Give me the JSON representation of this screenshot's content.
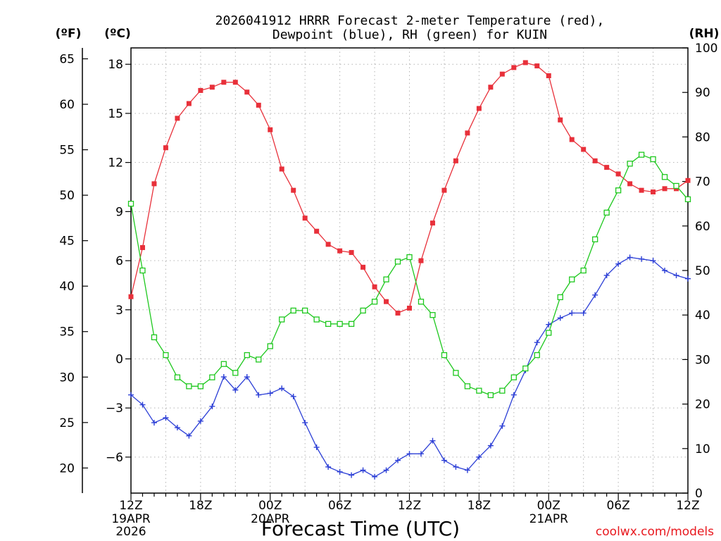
{
  "chart_data": {
    "type": "line",
    "title_lines": [
      "2026041912 HRRR Forecast 2-meter Temperature (red),",
      "Dewpoint (blue), RH (green) for KUIN"
    ],
    "xlabel": "Forecast Time (UTC)",
    "credit": "coolwx.com/models",
    "units": {
      "fahrenheit": "(ºF)",
      "celsius": "(ºC)",
      "rh": "(RH)"
    },
    "x_range_hours": [
      0,
      48
    ],
    "x_ticks": [
      {
        "hour": 0,
        "label": "12Z",
        "sub": [
          "19APR",
          "2026"
        ]
      },
      {
        "hour": 6,
        "label": "18Z",
        "sub": []
      },
      {
        "hour": 12,
        "label": "00Z",
        "sub": [
          "20APR"
        ]
      },
      {
        "hour": 18,
        "label": "06Z",
        "sub": []
      },
      {
        "hour": 24,
        "label": "12Z",
        "sub": []
      },
      {
        "hour": 30,
        "label": "18Z",
        "sub": []
      },
      {
        "hour": 36,
        "label": "00Z",
        "sub": [
          "21APR"
        ]
      },
      {
        "hour": 42,
        "label": "06Z",
        "sub": []
      },
      {
        "hour": 48,
        "label": "12Z",
        "sub": []
      }
    ],
    "celsius_axis": {
      "range": [
        -8.2,
        19.0
      ],
      "ticks": [
        18,
        15,
        12,
        9,
        6,
        3,
        0,
        -3,
        -6
      ]
    },
    "fahrenheit_axis": {
      "ticks": [
        65,
        60,
        55,
        50,
        45,
        40,
        35,
        30,
        25,
        20
      ]
    },
    "rh_axis": {
      "range": [
        0,
        100
      ],
      "ticks": [
        100,
        90,
        80,
        70,
        60,
        50,
        40,
        30,
        20,
        10,
        0
      ]
    },
    "grid": true,
    "hours": [
      0,
      1,
      2,
      3,
      4,
      5,
      6,
      7,
      8,
      9,
      10,
      11,
      12,
      13,
      14,
      15,
      16,
      17,
      18,
      19,
      20,
      21,
      22,
      23,
      24,
      25,
      26,
      27,
      28,
      29,
      30,
      31,
      32,
      33,
      34,
      35,
      36,
      37,
      38,
      39,
      40,
      41,
      42,
      43,
      44,
      45,
      46,
      47,
      48
    ],
    "series": [
      {
        "name": "2-meter Temperature",
        "color": "#e8303a",
        "marker": "filled-square",
        "axis": "celsius",
        "values": [
          3.8,
          6.8,
          10.7,
          12.9,
          14.7,
          15.6,
          16.4,
          16.6,
          16.9,
          16.9,
          16.3,
          15.5,
          14.0,
          11.6,
          10.3,
          8.6,
          7.8,
          7.0,
          6.6,
          6.5,
          5.6,
          4.4,
          3.5,
          2.8,
          3.1,
          6.0,
          8.3,
          10.3,
          12.1,
          13.8,
          15.3,
          16.6,
          17.4,
          17.8,
          18.1,
          17.9,
          17.3,
          14.6,
          13.4,
          12.8,
          12.1,
          11.7,
          11.3,
          10.7,
          10.3,
          10.2,
          10.4,
          10.4,
          10.9
        ]
      },
      {
        "name": "Dewpoint",
        "color": "#2c3fd6",
        "marker": "plus",
        "axis": "celsius",
        "values": [
          -2.2,
          -2.8,
          -3.9,
          -3.6,
          -4.2,
          -4.7,
          -3.8,
          -2.9,
          -1.1,
          -1.9,
          -1.1,
          -2.2,
          -2.1,
          -1.8,
          -2.3,
          -3.9,
          -5.4,
          -6.6,
          -6.9,
          -7.1,
          -6.8,
          -7.2,
          -6.8,
          -6.2,
          -5.8,
          -5.8,
          -5.0,
          -6.2,
          -6.6,
          -6.8,
          -6.0,
          -5.3,
          -4.1,
          -2.2,
          -0.7,
          1.0,
          2.1,
          2.5,
          2.8,
          2.8,
          3.9,
          5.1,
          5.8,
          6.2,
          6.1,
          6.0,
          5.4,
          5.1,
          4.9
        ]
      },
      {
        "name": "RH",
        "color": "#1ec81e",
        "marker": "open-square",
        "axis": "rh",
        "values": [
          65,
          50,
          35,
          31,
          26,
          24,
          24,
          26,
          29,
          27,
          31,
          30,
          33,
          39,
          41,
          41,
          39,
          38,
          38,
          38,
          41,
          43,
          48,
          52,
          53,
          43,
          40,
          31,
          27,
          24,
          23,
          22,
          23,
          26,
          28,
          31,
          36,
          44,
          48,
          50,
          57,
          63,
          68,
          74,
          76,
          75,
          71,
          69,
          66
        ]
      }
    ]
  }
}
